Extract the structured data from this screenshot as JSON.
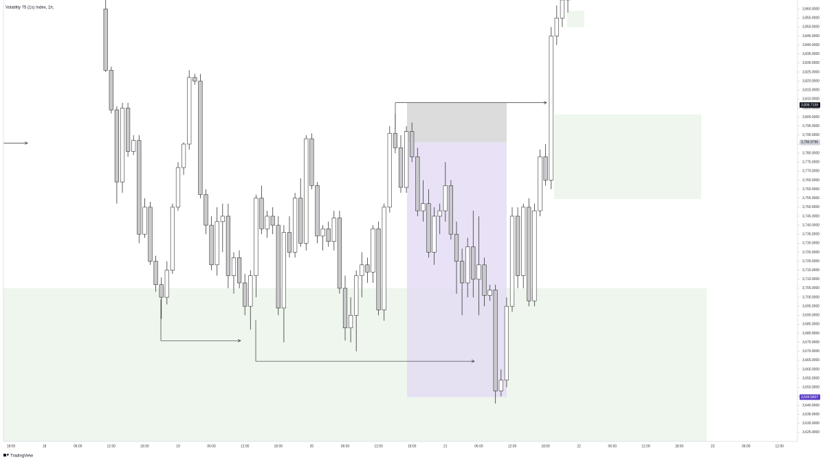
{
  "chart_data": {
    "type": "candlestick",
    "title": "Volatility 75 (1s) Index, 1h,",
    "footer": "TradingView",
    "open": [
      3860,
      3826,
      3804,
      3764,
      3805,
      3781,
      3787,
      3735,
      3750,
      3720,
      3707,
      3700,
      3715,
      3750,
      3772,
      3785,
      3822,
      3820,
      3757,
      3740,
      3718,
      3742,
      3745,
      3712,
      3722,
      3708,
      3695,
      3712,
      3755,
      3738,
      3745,
      3740,
      3694,
      3736,
      3725,
      3755,
      3730,
      3788,
      3762,
      3734,
      3738,
      3731,
      3744,
      3705,
      3683,
      3690,
      3712,
      3718,
      3714,
      3738,
      3693,
      3750,
      3791,
      3783,
      3761,
      3792,
      3778,
      3748,
      3752,
      3725,
      3745,
      3748,
      3762,
      3735,
      3720,
      3708,
      3728,
      3710,
      3718,
      3701,
      3704,
      3648,
      3654,
      3695,
      3745,
      3712,
      3750,
      3698,
      3748,
      3778,
      3765,
      3845,
      3855,
      3865
    ],
    "high": [
      3866,
      3828,
      3806,
      3808,
      3808,
      3790,
      3790,
      3755,
      3753,
      3723,
      3711,
      3720,
      3752,
      3775,
      3786,
      3826,
      3824,
      3824,
      3760,
      3745,
      3750,
      3752,
      3752,
      3725,
      3726,
      3713,
      3715,
      3757,
      3762,
      3748,
      3750,
      3745,
      3740,
      3745,
      3758,
      3766,
      3790,
      3791,
      3764,
      3740,
      3742,
      3748,
      3748,
      3712,
      3700,
      3715,
      3725,
      3722,
      3740,
      3742,
      3752,
      3795,
      3802,
      3790,
      3795,
      3797,
      3783,
      3765,
      3760,
      3750,
      3752,
      3775,
      3765,
      3742,
      3727,
      3733,
      3748,
      3745,
      3722,
      3707,
      3707,
      3660,
      3700,
      3750,
      3750,
      3752,
      3755,
      3752,
      3782,
      3785,
      3850,
      3862,
      3870,
      3870
    ],
    "low": [
      3825,
      3802,
      3752,
      3758,
      3778,
      3779,
      3730,
      3733,
      3718,
      3703,
      3688,
      3696,
      3713,
      3748,
      3768,
      3782,
      3818,
      3755,
      3735,
      3715,
      3712,
      3725,
      3705,
      3702,
      3705,
      3690,
      3682,
      3700,
      3735,
      3733,
      3735,
      3690,
      3675,
      3722,
      3722,
      3728,
      3726,
      3760,
      3730,
      3726,
      3728,
      3726,
      3702,
      3676,
      3675,
      3670,
      3700,
      3708,
      3708,
      3690,
      3687,
      3747,
      3780,
      3758,
      3758,
      3775,
      3745,
      3742,
      3722,
      3718,
      3735,
      3742,
      3732,
      3702,
      3690,
      3700,
      3700,
      3690,
      3695,
      3698,
      3641,
      3645,
      3650,
      3692,
      3705,
      3705,
      3695,
      3695,
      3745,
      3762,
      3760,
      3840,
      3850,
      3858
    ],
    "close": [
      3826,
      3804,
      3764,
      3805,
      3781,
      3787,
      3735,
      3750,
      3720,
      3707,
      3700,
      3715,
      3750,
      3772,
      3785,
      3822,
      3820,
      3757,
      3740,
      3718,
      3742,
      3745,
      3712,
      3722,
      3708,
      3695,
      3712,
      3755,
      3738,
      3745,
      3740,
      3694,
      3736,
      3725,
      3755,
      3730,
      3788,
      3762,
      3734,
      3738,
      3731,
      3744,
      3705,
      3683,
      3690,
      3712,
      3718,
      3714,
      3738,
      3693,
      3750,
      3791,
      3783,
      3761,
      3792,
      3778,
      3748,
      3752,
      3725,
      3745,
      3748,
      3762,
      3735,
      3720,
      3708,
      3728,
      3710,
      3718,
      3701,
      3704,
      3648,
      3654,
      3695,
      3745,
      3712,
      3750,
      3698,
      3748,
      3778,
      3765,
      3845,
      3855,
      3865,
      3867
    ],
    "up_color": "#ffffff",
    "down_color": "#c9c9cd",
    "wick_color": "#333333",
    "ylim": [
      3620,
      3865
    ],
    "yticks": [
      {
        "value": 3625,
        "label": "3,625.0000"
      },
      {
        "value": 3630,
        "label": "3,630.0000"
      },
      {
        "value": 3635,
        "label": "3,635.0000"
      },
      {
        "value": 3640,
        "label": "3,640.0000"
      },
      {
        "value": 3645,
        "label": "3,645.0000"
      },
      {
        "value": 3650,
        "label": "3,650.0000"
      },
      {
        "value": 3655,
        "label": "3,655.0000"
      },
      {
        "value": 3660,
        "label": "3,660.0000"
      },
      {
        "value": 3665,
        "label": "3,665.0000"
      },
      {
        "value": 3670,
        "label": "3,670.0000"
      },
      {
        "value": 3675,
        "label": "3,675.0000"
      },
      {
        "value": 3680,
        "label": "3,680.0000"
      },
      {
        "value": 3685,
        "label": "3,685.0000"
      },
      {
        "value": 3690,
        "label": "3,690.0000"
      },
      {
        "value": 3695,
        "label": "3,695.0000"
      },
      {
        "value": 3700,
        "label": "3,700.0000"
      },
      {
        "value": 3705,
        "label": "3,705.0000"
      },
      {
        "value": 3710,
        "label": "3,710.0000"
      },
      {
        "value": 3715,
        "label": "3,715.0000"
      },
      {
        "value": 3720,
        "label": "3,720.0000"
      },
      {
        "value": 3725,
        "label": "3,725.0000"
      },
      {
        "value": 3730,
        "label": "3,730.0000"
      },
      {
        "value": 3735,
        "label": "3,735.0000"
      },
      {
        "value": 3740,
        "label": "3,740.0000"
      },
      {
        "value": 3745,
        "label": "3,745.0000"
      },
      {
        "value": 3750,
        "label": "3,750.0000"
      },
      {
        "value": 3755,
        "label": "3,755.0000"
      },
      {
        "value": 3760,
        "label": "3,760.0000"
      },
      {
        "value": 3765,
        "label": "3,765.0000"
      },
      {
        "value": 3770,
        "label": "3,770.0000"
      },
      {
        "value": 3775,
        "label": "3,775.0000"
      },
      {
        "value": 3780,
        "label": "3,780.0000"
      },
      {
        "value": 3785,
        "label": "3,785.0000"
      },
      {
        "value": 3790,
        "label": "3,790.0000"
      },
      {
        "value": 3795,
        "label": "3,795.0000"
      },
      {
        "value": 3800,
        "label": "3,800.0000"
      },
      {
        "value": 3805,
        "label": "3,805.0000"
      },
      {
        "value": 3810,
        "label": "3,810.0000"
      },
      {
        "value": 3815,
        "label": "3,815.0000"
      },
      {
        "value": 3820,
        "label": "3,820.0000"
      },
      {
        "value": 3825,
        "label": "3,825.0000"
      },
      {
        "value": 3830,
        "label": "3,830.0000"
      },
      {
        "value": 3835,
        "label": "3,835.0000"
      },
      {
        "value": 3840,
        "label": "3,840.0000"
      },
      {
        "value": 3845,
        "label": "3,845.0000"
      },
      {
        "value": 3850,
        "label": "3,850.0000"
      },
      {
        "value": 3855,
        "label": "3,855.0000"
      },
      {
        "value": 3860,
        "label": "3,860.0000"
      }
    ],
    "x_labels": [
      "18:00",
      "18",
      "06:00",
      "12:00",
      "18:00",
      "19",
      "06:00",
      "12:00",
      "18:00",
      "20",
      "06:00",
      "12:00",
      "18:00",
      "21",
      "06:00",
      "12:00",
      "18:00",
      "22",
      "06:00",
      "12:00",
      "18:00",
      "23",
      "06:00",
      "12:00"
    ],
    "zones": [
      {
        "top": 3705,
        "bottom": 3620,
        "color": "#eef6ee"
      },
      {
        "top": 3786,
        "bottom": 3644.6,
        "color": "#e2d8f3"
      },
      {
        "top": 3808,
        "bottom": 3786,
        "color": "#dcdcdc"
      },
      {
        "top": 3801.5,
        "bottom": 3754.5,
        "color": "#eef6ee"
      },
      {
        "top": 3859,
        "bottom": 3850,
        "color": "#eef6ee"
      }
    ],
    "levels": [
      3785.6,
      3675.9,
      3664.5,
      3808
    ],
    "price_labels": [
      {
        "value": 3806.7159,
        "label": "3,806.7159",
        "color": "#131722"
      },
      {
        "value": 3785.9796,
        "label": "3,785.9796",
        "color": "#d1d4dc"
      },
      {
        "value": 3644.5607,
        "label": "3,644.5607",
        "color": "#5b3cc4"
      }
    ]
  }
}
